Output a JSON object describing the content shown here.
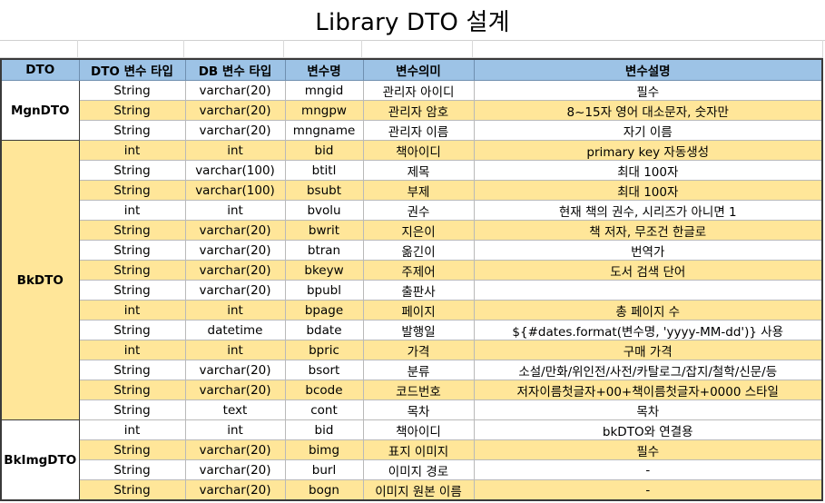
{
  "title": "Library DTO 설계",
  "colors": {
    "header": "#9dc3e6",
    "highlight": "#ffe699",
    "plain": "#ffffff"
  },
  "headers": [
    "DTO",
    "DTO 변수 타입",
    "DB 변수 타입",
    "변수명",
    "변수의미",
    "변수설명"
  ],
  "groups": [
    {
      "name": "MgnDTO",
      "highlight": false,
      "rows": [
        {
          "dto_type": "String",
          "db_type": "varchar(20)",
          "var": "mngid",
          "meaning": "관리자 아이디",
          "desc": "필수",
          "hl": false
        },
        {
          "dto_type": "String",
          "db_type": "varchar(20)",
          "var": "mngpw",
          "meaning": "관리자 암호",
          "desc": "8~15자 영어 대소문자, 숫자만",
          "hl": true
        },
        {
          "dto_type": "String",
          "db_type": "varchar(20)",
          "var": "mngname",
          "meaning": "관리자 이름",
          "desc": "자기 이름",
          "hl": false
        }
      ]
    },
    {
      "name": "BkDTO",
      "highlight": true,
      "rows": [
        {
          "dto_type": "int",
          "db_type": "int",
          "var": "bid",
          "meaning": "책아이디",
          "desc": "primary key 자동생성",
          "hl": true
        },
        {
          "dto_type": "String",
          "db_type": "varchar(100)",
          "var": "btitl",
          "meaning": "제목",
          "desc": "최대 100자",
          "hl": false
        },
        {
          "dto_type": "String",
          "db_type": "varchar(100)",
          "var": "bsubt",
          "meaning": "부제",
          "desc": "최대 100자",
          "hl": true
        },
        {
          "dto_type": "int",
          "db_type": "int",
          "var": "bvolu",
          "meaning": "권수",
          "desc": "현재 책의 권수, 시리즈가 아니면 1",
          "hl": false
        },
        {
          "dto_type": "String",
          "db_type": "varchar(20)",
          "var": "bwrit",
          "meaning": "지은이",
          "desc": "책 저자, 무조건 한글로",
          "hl": true
        },
        {
          "dto_type": "String",
          "db_type": "varchar(20)",
          "var": "btran",
          "meaning": "옮긴이",
          "desc": "번역가",
          "hl": false
        },
        {
          "dto_type": "String",
          "db_type": "varchar(20)",
          "var": "bkeyw",
          "meaning": "주제어",
          "desc": "도서 검색 단어",
          "hl": true
        },
        {
          "dto_type": "String",
          "db_type": "varchar(20)",
          "var": "bpubl",
          "meaning": "출판사",
          "desc": "",
          "hl": false
        },
        {
          "dto_type": "int",
          "db_type": "int",
          "var": "bpage",
          "meaning": "페이지",
          "desc": "총 페이지 수",
          "hl": true
        },
        {
          "dto_type": "String",
          "db_type": "datetime",
          "var": "bdate",
          "meaning": "발행일",
          "desc": "${#dates.format(변수명, 'yyyy-MM-dd')} 사용",
          "hl": false
        },
        {
          "dto_type": "int",
          "db_type": "int",
          "var": "bpric",
          "meaning": "가격",
          "desc": "구매 가격",
          "hl": true
        },
        {
          "dto_type": "String",
          "db_type": "varchar(20)",
          "var": "bsort",
          "meaning": "분류",
          "desc": "소설/만화/위인전/사전/카탈로그/잡지/철학/신문/등",
          "hl": false
        },
        {
          "dto_type": "String",
          "db_type": "varchar(20)",
          "var": "bcode",
          "meaning": "코드번호",
          "desc": "저자이름첫글자+00+책이름첫글자+0000 스타일",
          "hl": true
        },
        {
          "dto_type": "String",
          "db_type": "text",
          "var": "cont",
          "meaning": "목차",
          "desc": "목차",
          "hl": false
        }
      ]
    },
    {
      "name": "BkImgDTO",
      "highlight": false,
      "rows": [
        {
          "dto_type": "int",
          "db_type": "int",
          "var": "bid",
          "meaning": "책아이디",
          "desc": "bkDTO와 연결용",
          "hl": false
        },
        {
          "dto_type": "String",
          "db_type": "varchar(20)",
          "var": "bimg",
          "meaning": "표지 이미지",
          "desc": "필수",
          "hl": true
        },
        {
          "dto_type": "String",
          "db_type": "varchar(20)",
          "var": "burl",
          "meaning": "이미지 경로",
          "desc": "-",
          "hl": false
        },
        {
          "dto_type": "String",
          "db_type": "varchar(20)",
          "var": "bogn",
          "meaning": "이미지 원본 이름",
          "desc": "-",
          "hl": true
        }
      ]
    }
  ]
}
